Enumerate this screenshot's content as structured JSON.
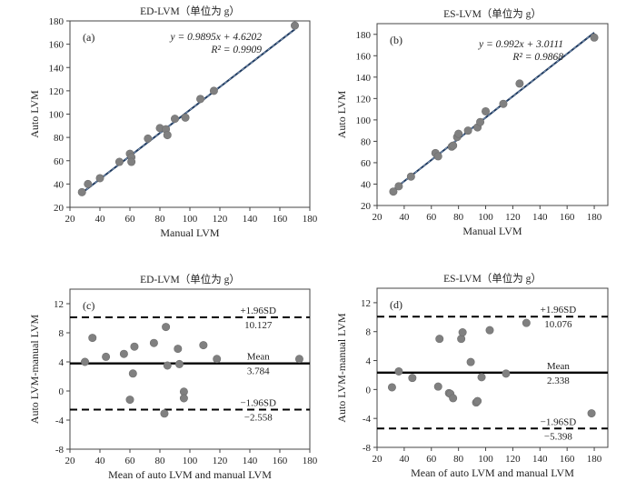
{
  "colors": {
    "point": "#808080",
    "fit_line": "#1f3a5f",
    "mean_line": "#000000",
    "sd_line": "#000000",
    "axis": "#444444"
  },
  "chart_data": [
    {
      "id": "a",
      "type": "scatter",
      "panel_label": "(a)",
      "title": "ED-LVM（单位为 g）",
      "xlabel": "Manual LVM",
      "ylabel": "Auto LVM",
      "xlim": [
        20,
        180
      ],
      "ylim": [
        20,
        180
      ],
      "xticks": [
        20,
        40,
        60,
        80,
        100,
        120,
        140,
        160,
        180
      ],
      "yticks": [
        20,
        40,
        60,
        80,
        100,
        120,
        140,
        160,
        180
      ],
      "equation": "y = 0.9895x + 4.6202",
      "r2": "R² = 0.9909",
      "fit": {
        "slope": 0.9895,
        "intercept": 4.6202
      },
      "points": [
        [
          28,
          33
        ],
        [
          32,
          40
        ],
        [
          40,
          45
        ],
        [
          53,
          59
        ],
        [
          60,
          66
        ],
        [
          61,
          63
        ],
        [
          61,
          59
        ],
        [
          72,
          79
        ],
        [
          80,
          88
        ],
        [
          84,
          87
        ],
        [
          85,
          82
        ],
        [
          90,
          96
        ],
        [
          97,
          97
        ],
        [
          107,
          113
        ],
        [
          116,
          120
        ],
        [
          170,
          176
        ]
      ]
    },
    {
      "id": "b",
      "type": "scatter",
      "panel_label": "(b)",
      "title": "ES-LVM（单位为 g）",
      "xlabel": "Manual LVM",
      "ylabel": "Auto LVM",
      "xlim": [
        20,
        190
      ],
      "ylim": [
        20,
        190
      ],
      "xticks": [
        20,
        40,
        60,
        80,
        100,
        120,
        140,
        160,
        180
      ],
      "yticks": [
        20,
        40,
        60,
        80,
        100,
        120,
        140,
        160,
        180
      ],
      "equation": "y = 0.992x + 3.0111",
      "r2": "R² = 0.9868",
      "fit": {
        "slope": 0.992,
        "intercept": 3.0111
      },
      "points": [
        [
          32,
          33
        ],
        [
          36,
          38
        ],
        [
          45,
          47
        ],
        [
          63,
          69
        ],
        [
          65,
          66
        ],
        [
          75,
          75
        ],
        [
          76,
          76
        ],
        [
          79,
          84
        ],
        [
          80,
          87
        ],
        [
          87,
          90
        ],
        [
          94,
          93
        ],
        [
          96,
          98
        ],
        [
          100,
          108
        ],
        [
          113,
          115
        ],
        [
          125,
          134
        ],
        [
          180,
          177
        ]
      ]
    },
    {
      "id": "c",
      "type": "scatter",
      "panel_label": "(c)",
      "title": "ED-LVM（单位为 g）",
      "xlabel": "Mean of auto LVM and manual LVM",
      "ylabel": "Auto LVM-manual LVM",
      "xlim": [
        20,
        180
      ],
      "ylim": [
        -8,
        14
      ],
      "xticks": [
        20,
        40,
        60,
        80,
        100,
        120,
        140,
        160,
        180
      ],
      "yticks": [
        -8,
        -4,
        0,
        4,
        8,
        12
      ],
      "lines": [
        {
          "kind": "sd",
          "y": 10.127,
          "label": "+1.96SD",
          "value": "10.127"
        },
        {
          "kind": "mean",
          "y": 3.784,
          "label": "Mean",
          "value": "3.784"
        },
        {
          "kind": "sd",
          "y": -2.558,
          "label": "−1.96SD",
          "value": "−2.558"
        }
      ],
      "points": [
        [
          30,
          4
        ],
        [
          35,
          7.3
        ],
        [
          44,
          4.7
        ],
        [
          56,
          5.1
        ],
        [
          60,
          -1.2
        ],
        [
          62,
          2.4
        ],
        [
          63,
          6.1
        ],
        [
          76,
          6.6
        ],
        [
          83,
          -3.1
        ],
        [
          84,
          8.8
        ],
        [
          85,
          3.5
        ],
        [
          92,
          5.8
        ],
        [
          93,
          3.7
        ],
        [
          96,
          -0.1
        ],
        [
          96,
          -1
        ],
        [
          109,
          6.3
        ],
        [
          118,
          4.4
        ],
        [
          173,
          4.4
        ]
      ]
    },
    {
      "id": "d",
      "type": "scatter",
      "panel_label": "(d)",
      "title": "ES-LVM（单位为 g）",
      "xlabel": "Mean of auto LVM and manual LVM",
      "ylabel": "Auto LVM-manual LVM",
      "xlim": [
        20,
        190
      ],
      "ylim": [
        -8,
        14
      ],
      "xticks": [
        20,
        40,
        60,
        80,
        100,
        120,
        140,
        160,
        180
      ],
      "yticks": [
        -8,
        -4,
        0,
        4,
        8,
        12
      ],
      "lines": [
        {
          "kind": "sd",
          "y": 10.076,
          "label": "+1.96SD",
          "value": "10.076"
        },
        {
          "kind": "mean",
          "y": 2.338,
          "label": "Mean",
          "value": "2.338"
        },
        {
          "kind": "sd",
          "y": -5.398,
          "label": "−1.96SD",
          "value": "−5.398"
        }
      ],
      "points": [
        [
          31,
          0.3
        ],
        [
          36,
          2.5
        ],
        [
          46,
          1.6
        ],
        [
          65,
          0.4
        ],
        [
          66,
          7
        ],
        [
          73,
          -0.5
        ],
        [
          74,
          -0.6
        ],
        [
          76,
          -1.2
        ],
        [
          82,
          7
        ],
        [
          83,
          7.9
        ],
        [
          89,
          3.8
        ],
        [
          93,
          -1.8
        ],
        [
          94,
          -1.6
        ],
        [
          97,
          1.7
        ],
        [
          103,
          8.2
        ],
        [
          115,
          2.2
        ],
        [
          130,
          9.2
        ],
        [
          178,
          -3.3
        ]
      ]
    }
  ]
}
